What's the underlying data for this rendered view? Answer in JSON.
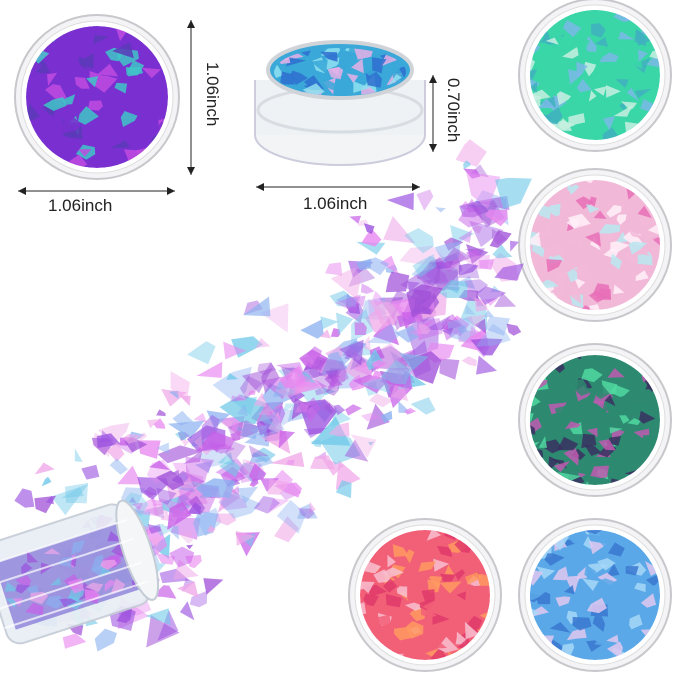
{
  "dimensions": {
    "top_view_width": "1.06inch",
    "top_view_height": "1.06inch",
    "side_view_width": "1.06inch",
    "side_view_height": "0.70inch"
  },
  "jars": [
    {
      "name": "purple-teal",
      "colors": [
        "#7a2fd0",
        "#3fc6c8",
        "#c04be0",
        "#5a3ab8"
      ]
    },
    {
      "name": "blue-side",
      "colors": [
        "#3aa8d8",
        "#2f6fd0",
        "#8fe0f0",
        "#e6b0e8"
      ]
    },
    {
      "name": "green-teal",
      "colors": [
        "#3ad6a8",
        "#7ab8e8",
        "#c8f0e0",
        "#3fb0c0"
      ]
    },
    {
      "name": "pink-white",
      "colors": [
        "#f2b8d8",
        "#e870b8",
        "#b8e8f0",
        "#fff0f8"
      ]
    },
    {
      "name": "dark-green",
      "colors": [
        "#2d8a70",
        "#3a3060",
        "#50d8a0",
        "#c05ab0"
      ]
    },
    {
      "name": "orange-pink",
      "colors": [
        "#f26078",
        "#ff9a60",
        "#f8c0d0",
        "#e03a6a"
      ]
    },
    {
      "name": "light-blue",
      "colors": [
        "#5aa8e8",
        "#a8d8f8",
        "#3a78d0",
        "#e0c8f0"
      ]
    }
  ],
  "flake_colors": [
    "#c860e8",
    "#9a50e0",
    "#e888f0",
    "#70c8e8",
    "#8ab0f0",
    "#f0a8e8",
    "#a050d8"
  ]
}
